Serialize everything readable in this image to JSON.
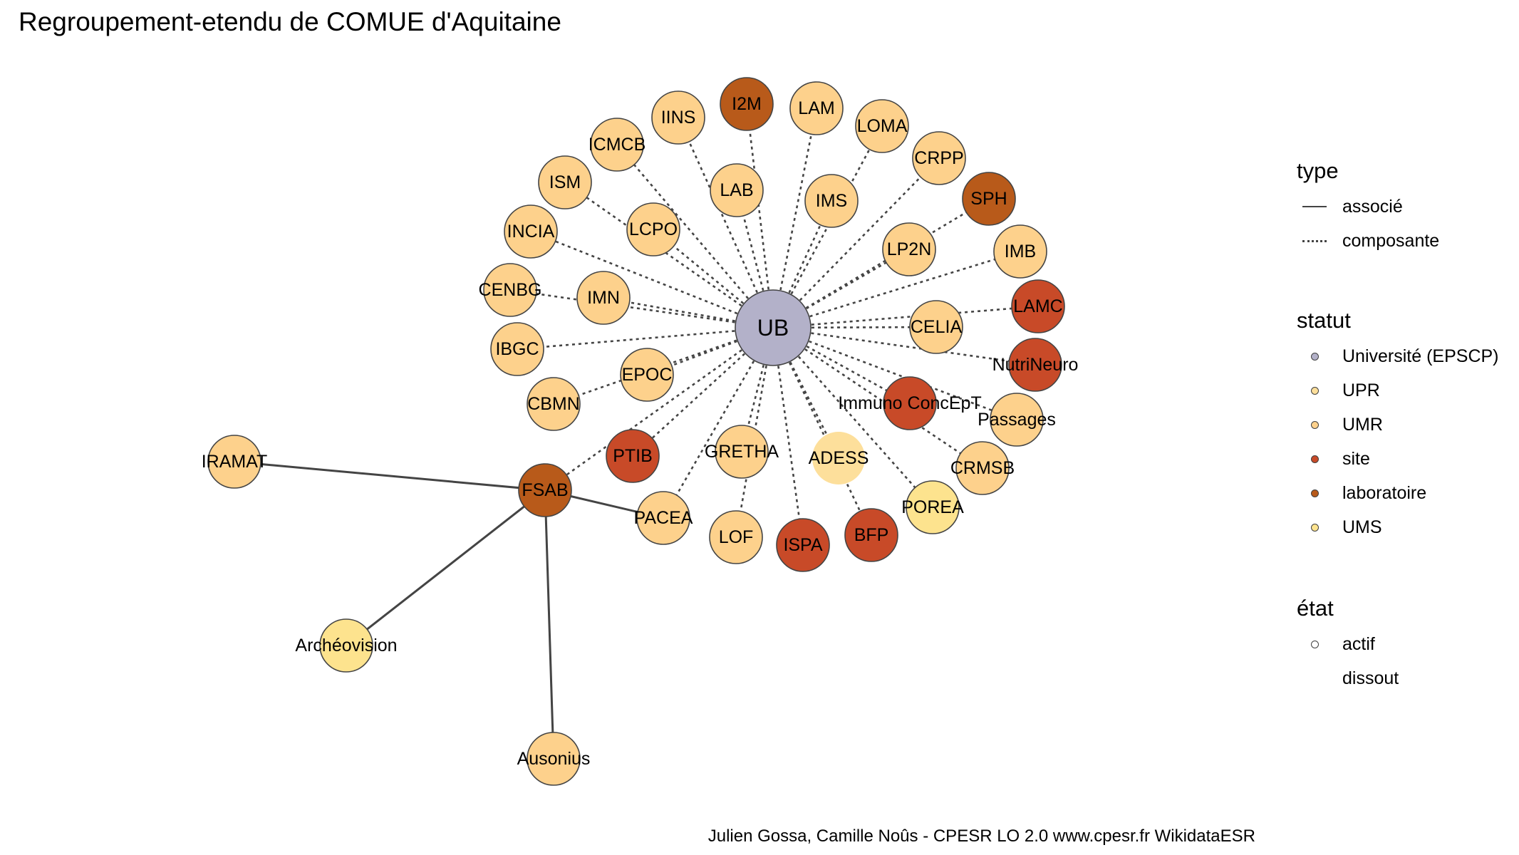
{
  "title": "Regroupement-etendu de COMUE d'Aquitaine",
  "caption": "Julien Gossa, Camille Noûs - CPESR LO 2.0 www.cpesr.fr WikidataESR",
  "legend": {
    "type": {
      "title": "type",
      "items": [
        {
          "label": "associé",
          "style": "solid"
        },
        {
          "label": "composante",
          "style": "dashed"
        }
      ]
    },
    "statut": {
      "title": "statut",
      "items": [
        {
          "label": "Université (EPSCP)",
          "color": "#b3b1c9"
        },
        {
          "label": "UPR",
          "color": "#fddf9b"
        },
        {
          "label": "UMR",
          "color": "#fdd18c"
        },
        {
          "label": "site",
          "color": "#c84a28"
        },
        {
          "label": "laboratoire",
          "color": "#b85a1a"
        },
        {
          "label": "UMS",
          "color": "#fde38e"
        }
      ]
    },
    "etat": {
      "title": "état",
      "items": [
        {
          "label": "actif",
          "marker": "open-circle"
        },
        {
          "label": "dissout",
          "marker": "none"
        }
      ]
    }
  },
  "graph": {
    "nodes": [
      {
        "id": "UB",
        "statut": "Université (EPSCP)",
        "hub": true
      },
      {
        "id": "I2M",
        "statut": "laboratoire"
      },
      {
        "id": "IINS",
        "statut": "UMR"
      },
      {
        "id": "LAM",
        "statut": "UMR"
      },
      {
        "id": "LOMA",
        "statut": "UMR"
      },
      {
        "id": "ICMCB",
        "statut": "UMR"
      },
      {
        "id": "CRPP",
        "statut": "UMR"
      },
      {
        "id": "LAB",
        "statut": "UMR"
      },
      {
        "id": "ISM",
        "statut": "UMR"
      },
      {
        "id": "IMS",
        "statut": "UMR"
      },
      {
        "id": "SPH",
        "statut": "laboratoire"
      },
      {
        "id": "LCPO",
        "statut": "UMR"
      },
      {
        "id": "INCIA",
        "statut": "UMR"
      },
      {
        "id": "LP2N",
        "statut": "UMR"
      },
      {
        "id": "IMB",
        "statut": "UMR"
      },
      {
        "id": "CENBG",
        "statut": "UMR"
      },
      {
        "id": "IMN",
        "statut": "UMR"
      },
      {
        "id": "LAMC",
        "statut": "site"
      },
      {
        "id": "CELIA",
        "statut": "UMR"
      },
      {
        "id": "IBGC",
        "statut": "UMR"
      },
      {
        "id": "NutriNeuro",
        "statut": "site"
      },
      {
        "id": "EPOC",
        "statut": "UMR"
      },
      {
        "id": "CBMN",
        "statut": "UMR"
      },
      {
        "id": "Immuno ConcEpT",
        "statut": "site"
      },
      {
        "id": "Passages",
        "statut": "UMR"
      },
      {
        "id": "PTIB",
        "statut": "site"
      },
      {
        "id": "GRETHA",
        "statut": "UMR"
      },
      {
        "id": "ADESS",
        "statut": "UPR"
      },
      {
        "id": "CRMSB",
        "statut": "UMR"
      },
      {
        "id": "IRAMAT",
        "statut": "UMR"
      },
      {
        "id": "FSAB",
        "statut": "laboratoire"
      },
      {
        "id": "PACEA",
        "statut": "UMR"
      },
      {
        "id": "POREA",
        "statut": "UMS"
      },
      {
        "id": "LOF",
        "statut": "UMR"
      },
      {
        "id": "ISPA",
        "statut": "site"
      },
      {
        "id": "BFP",
        "statut": "site"
      },
      {
        "id": "Archéovision",
        "statut": "UMS"
      },
      {
        "id": "Ausonius",
        "statut": "UMR"
      }
    ],
    "edges": [
      {
        "from": "UB",
        "to": "I2M",
        "type": "composante"
      },
      {
        "from": "UB",
        "to": "IINS",
        "type": "composante"
      },
      {
        "from": "UB",
        "to": "LAM",
        "type": "composante"
      },
      {
        "from": "UB",
        "to": "LOMA",
        "type": "composante"
      },
      {
        "from": "UB",
        "to": "ICMCB",
        "type": "composante"
      },
      {
        "from": "UB",
        "to": "CRPP",
        "type": "composante"
      },
      {
        "from": "UB",
        "to": "LAB",
        "type": "composante"
      },
      {
        "from": "UB",
        "to": "ISM",
        "type": "composante"
      },
      {
        "from": "UB",
        "to": "IMS",
        "type": "composante"
      },
      {
        "from": "UB",
        "to": "SPH",
        "type": "composante"
      },
      {
        "from": "UB",
        "to": "LCPO",
        "type": "composante"
      },
      {
        "from": "UB",
        "to": "INCIA",
        "type": "composante"
      },
      {
        "from": "UB",
        "to": "LP2N",
        "type": "composante"
      },
      {
        "from": "UB",
        "to": "IMB",
        "type": "composante"
      },
      {
        "from": "UB",
        "to": "CENBG",
        "type": "composante"
      },
      {
        "from": "UB",
        "to": "IMN",
        "type": "composante"
      },
      {
        "from": "UB",
        "to": "LAMC",
        "type": "composante"
      },
      {
        "from": "UB",
        "to": "CELIA",
        "type": "composante"
      },
      {
        "from": "UB",
        "to": "IBGC",
        "type": "composante"
      },
      {
        "from": "UB",
        "to": "NutriNeuro",
        "type": "composante"
      },
      {
        "from": "UB",
        "to": "EPOC",
        "type": "composante"
      },
      {
        "from": "UB",
        "to": "CBMN",
        "type": "composante"
      },
      {
        "from": "UB",
        "to": "Immuno ConcEpT",
        "type": "composante"
      },
      {
        "from": "UB",
        "to": "Passages",
        "type": "composante"
      },
      {
        "from": "UB",
        "to": "PTIB",
        "type": "composante"
      },
      {
        "from": "UB",
        "to": "GRETHA",
        "type": "composante"
      },
      {
        "from": "UB",
        "to": "ADESS",
        "type": "composante"
      },
      {
        "from": "UB",
        "to": "CRMSB",
        "type": "composante"
      },
      {
        "from": "UB",
        "to": "FSAB",
        "type": "composante"
      },
      {
        "from": "UB",
        "to": "PACEA",
        "type": "composante"
      },
      {
        "from": "UB",
        "to": "POREA",
        "type": "composante"
      },
      {
        "from": "UB",
        "to": "LOF",
        "type": "composante"
      },
      {
        "from": "UB",
        "to": "ISPA",
        "type": "composante"
      },
      {
        "from": "UB",
        "to": "BFP",
        "type": "composante"
      },
      {
        "from": "FSAB",
        "to": "IRAMAT",
        "type": "associé"
      },
      {
        "from": "FSAB",
        "to": "PACEA",
        "type": "associé"
      },
      {
        "from": "FSAB",
        "to": "Archéovision",
        "type": "associé"
      },
      {
        "from": "FSAB",
        "to": "Ausonius",
        "type": "associé"
      }
    ]
  }
}
